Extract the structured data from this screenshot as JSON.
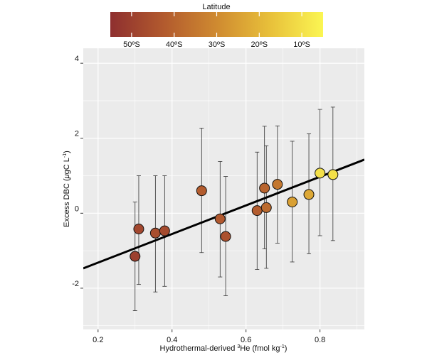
{
  "chart_data": {
    "type": "scatter",
    "xlabel_prefix": "Hydrothermal-derived ",
    "xlabel_sup": "3",
    "xlabel_main": "He (fmol kg",
    "xlabel_unit_sup": "-1",
    "xlabel_close": ")",
    "ylabel_main": "Excess DBC (",
    "ylabel_mu": "μ",
    "ylabel_unit": "gC L",
    "ylabel_unit_sup": "-1",
    "ylabel_close": ")",
    "xlim": [
      0.16,
      0.92
    ],
    "ylim": [
      -3.1,
      4.4
    ],
    "x_ticks": [
      0.2,
      0.4,
      0.6,
      0.8
    ],
    "x_tick_labels": [
      "0.2",
      "0.4",
      "0.6",
      "0.8"
    ],
    "y_ticks": [
      -2,
      0,
      2,
      4
    ],
    "y_tick_labels": [
      "-2",
      "0",
      "2",
      "4"
    ],
    "grid": true,
    "colorbar": {
      "title": "Latitude",
      "range": [
        55,
        5
      ],
      "ticks": [
        50,
        40,
        30,
        20,
        10
      ],
      "tick_labels": [
        "50ºS",
        "40ºS",
        "30ºS",
        "20ºS",
        "10ºS"
      ],
      "colors": [
        "#8e2f2f",
        "#b25a2e",
        "#cf8a30",
        "#e8c03a",
        "#fbf653"
      ]
    },
    "points": [
      {
        "x": 0.3,
        "y": -1.15,
        "err_low": -2.6,
        "err_high": 0.3,
        "lat": 50
      },
      {
        "x": 0.31,
        "y": -0.42,
        "err_low": -1.9,
        "err_high": 1.0,
        "lat": 48
      },
      {
        "x": 0.355,
        "y": -0.53,
        "err_low": -2.1,
        "err_high": 1.0,
        "lat": 46
      },
      {
        "x": 0.38,
        "y": -0.47,
        "err_low": -1.95,
        "err_high": 1.0,
        "lat": 47
      },
      {
        "x": 0.48,
        "y": 0.6,
        "err_low": -1.05,
        "err_high": 2.27,
        "lat": 42
      },
      {
        "x": 0.53,
        "y": -0.15,
        "err_low": -1.7,
        "err_high": 1.38,
        "lat": 43
      },
      {
        "x": 0.545,
        "y": -0.62,
        "err_low": -2.2,
        "err_high": 0.98,
        "lat": 45
      },
      {
        "x": 0.63,
        "y": 0.07,
        "err_low": -1.5,
        "err_high": 1.63,
        "lat": 42
      },
      {
        "x": 0.65,
        "y": 0.67,
        "err_low": -0.95,
        "err_high": 2.32,
        "lat": 40
      },
      {
        "x": 0.655,
        "y": 0.15,
        "err_low": -1.47,
        "err_high": 1.8,
        "lat": 38
      },
      {
        "x": 0.685,
        "y": 0.77,
        "err_low": -0.8,
        "err_high": 2.33,
        "lat": 35
      },
      {
        "x": 0.725,
        "y": 0.3,
        "err_low": -1.3,
        "err_high": 1.92,
        "lat": 25
      },
      {
        "x": 0.77,
        "y": 0.5,
        "err_low": -1.08,
        "err_high": 2.12,
        "lat": 23
      },
      {
        "x": 0.8,
        "y": 1.07,
        "err_low": -0.6,
        "err_high": 2.77,
        "lat": 10
      },
      {
        "x": 0.835,
        "y": 1.03,
        "err_low": -0.73,
        "err_high": 2.83,
        "lat": 10
      }
    ],
    "fit_line": {
      "x": [
        0.16,
        0.92
      ],
      "y": [
        -1.47,
        1.43
      ]
    }
  }
}
